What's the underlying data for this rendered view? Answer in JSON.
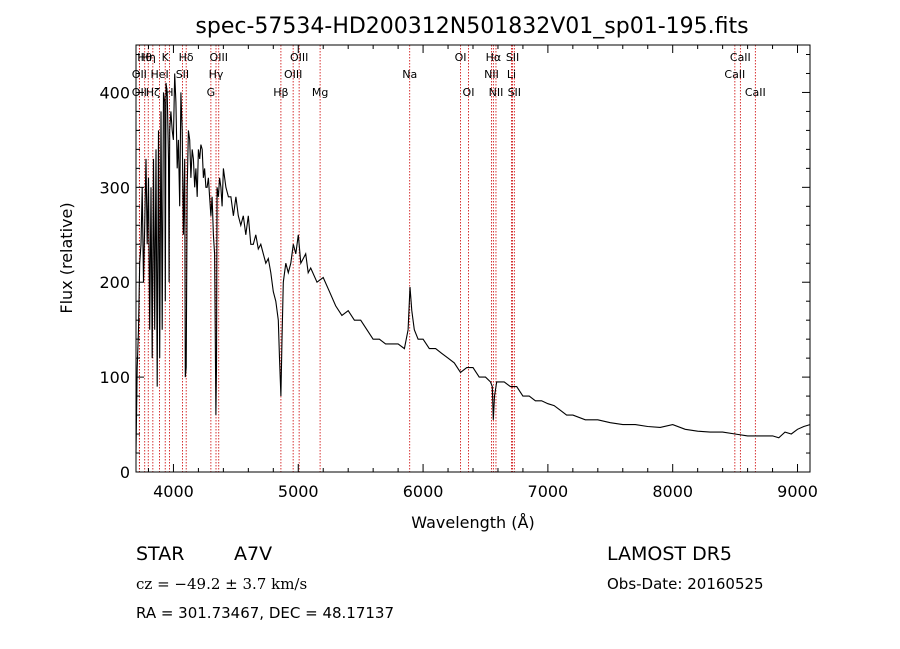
{
  "chart_data": {
    "type": "line",
    "title": "spec-57534-HD200312N501832V01_sp01-195.fits",
    "xlabel": "Wavelength (Å)",
    "ylabel": "Flux (relative)",
    "xlim": [
      3700,
      9100
    ],
    "ylim": [
      0,
      450
    ],
    "x_ticks": [
      4000,
      5000,
      6000,
      7000,
      8000,
      9000
    ],
    "x_tick_labels": [
      "4000",
      "5000",
      "6000",
      "7000",
      "8000",
      "9000"
    ],
    "y_ticks": [
      0,
      100,
      200,
      300,
      400
    ],
    "y_tick_labels": [
      "0",
      "100",
      "200",
      "300",
      "400"
    ],
    "grid": false,
    "series": [
      {
        "color": "#000000",
        "x": [
          3700,
          3710,
          3720,
          3730,
          3740,
          3750,
          3760,
          3770,
          3780,
          3790,
          3800,
          3810,
          3820,
          3830,
          3840,
          3850,
          3860,
          3870,
          3880,
          3890,
          3900,
          3910,
          3920,
          3930,
          3935,
          3940,
          3950,
          3960,
          3965,
          3970,
          3980,
          3990,
          4000,
          4010,
          4020,
          4030,
          4040,
          4050,
          4060,
          4070,
          4080,
          4090,
          4095,
          4102,
          4110,
          4120,
          4130,
          4140,
          4150,
          4160,
          4170,
          4180,
          4190,
          4200,
          4210,
          4220,
          4230,
          4240,
          4250,
          4260,
          4270,
          4280,
          4290,
          4300,
          4310,
          4320,
          4330,
          4340,
          4345,
          4350,
          4360,
          4370,
          4380,
          4390,
          4400,
          4420,
          4440,
          4460,
          4480,
          4500,
          4520,
          4540,
          4560,
          4580,
          4600,
          4620,
          4640,
          4660,
          4680,
          4700,
          4720,
          4740,
          4760,
          4780,
          4800,
          4820,
          4840,
          4850,
          4861,
          4870,
          4880,
          4900,
          4920,
          4940,
          4960,
          4980,
          5000,
          5020,
          5040,
          5060,
          5080,
          5100,
          5150,
          5200,
          5250,
          5300,
          5350,
          5400,
          5450,
          5500,
          5550,
          5600,
          5650,
          5700,
          5750,
          5800,
          5850,
          5880,
          5895,
          5910,
          5930,
          5960,
          6000,
          6050,
          6100,
          6150,
          6200,
          6250,
          6300,
          6350,
          6400,
          6450,
          6500,
          6540,
          6555,
          6563,
          6572,
          6590,
          6620,
          6650,
          6700,
          6750,
          6800,
          6850,
          6900,
          6950,
          7000,
          7050,
          7100,
          7150,
          7200,
          7300,
          7400,
          7500,
          7600,
          7700,
          7800,
          7900,
          8000,
          8100,
          8200,
          8300,
          8400,
          8500,
          8600,
          8700,
          8800,
          8850,
          8900,
          8950,
          9000,
          9050,
          9100
        ],
        "y": [
          20,
          110,
          150,
          220,
          240,
          300,
          200,
          260,
          330,
          240,
          310,
          150,
          300,
          120,
          330,
          150,
          340,
          90,
          360,
          120,
          380,
          150,
          400,
          390,
          180,
          410,
          400,
          330,
          200,
          360,
          380,
          360,
          350,
          420,
          390,
          320,
          350,
          280,
          400,
          360,
          250,
          330,
          100,
          110,
          300,
          360,
          350,
          310,
          340,
          330,
          300,
          320,
          290,
          340,
          330,
          345,
          340,
          310,
          320,
          300,
          300,
          310,
          290,
          270,
          290,
          250,
          230,
          60,
          110,
          300,
          290,
          310,
          300,
          280,
          320,
          300,
          290,
          290,
          270,
          290,
          270,
          260,
          270,
          250,
          270,
          240,
          240,
          250,
          235,
          240,
          230,
          220,
          225,
          210,
          190,
          180,
          160,
          120,
          80,
          140,
          200,
          220,
          210,
          220,
          240,
          230,
          250,
          220,
          225,
          230,
          210,
          215,
          200,
          205,
          190,
          175,
          165,
          170,
          160,
          160,
          150,
          140,
          140,
          135,
          135,
          135,
          130,
          150,
          195,
          170,
          150,
          140,
          140,
          130,
          130,
          125,
          120,
          115,
          105,
          110,
          110,
          100,
          100,
          95,
          90,
          55,
          80,
          95,
          95,
          95,
          90,
          90,
          80,
          80,
          75,
          75,
          72,
          70,
          65,
          60,
          60,
          55,
          55,
          52,
          50,
          50,
          48,
          47,
          50,
          45,
          43,
          42,
          42,
          40,
          38,
          38,
          38,
          36,
          42,
          40,
          45,
          48,
          50
        ]
      }
    ],
    "spectral_lines": [
      {
        "x": 3770,
        "label": "Hθ",
        "row": 0
      },
      {
        "x": 3798,
        "label": "Hη",
        "row": 0
      },
      {
        "x": 3727,
        "label": "OII",
        "row": 1
      },
      {
        "x": 3727,
        "label": "OII",
        "row": 2
      },
      {
        "x": 3835,
        "label": "Hζ",
        "row": 2
      },
      {
        "x": 3889,
        "label": "HeI",
        "row": 1
      },
      {
        "x": 3934,
        "label": "K",
        "row": 0
      },
      {
        "x": 3968,
        "label": "H",
        "row": 2
      },
      {
        "x": 4072,
        "label": "SII",
        "row": 1
      },
      {
        "x": 4102,
        "label": "Hδ",
        "row": 0
      },
      {
        "x": 4300,
        "label": "G",
        "row": 2
      },
      {
        "x": 4341,
        "label": "Hγ",
        "row": 1
      },
      {
        "x": 4363,
        "label": "OIII",
        "row": 0
      },
      {
        "x": 4861,
        "label": "Hβ",
        "row": 2
      },
      {
        "x": 4959,
        "label": "OIII",
        "row": 1
      },
      {
        "x": 5007,
        "label": "OIII",
        "row": 0
      },
      {
        "x": 5175,
        "label": "Mg",
        "row": 2
      },
      {
        "x": 5893,
        "label": "Na",
        "row": 1
      },
      {
        "x": 6300,
        "label": "OI",
        "row": 0
      },
      {
        "x": 6364,
        "label": "OI",
        "row": 2
      },
      {
        "x": 6548,
        "label": "NII",
        "row": 1
      },
      {
        "x": 6563,
        "label": "Hα",
        "row": 0
      },
      {
        "x": 6584,
        "label": "NII",
        "row": 2
      },
      {
        "x": 6708,
        "label": "Li",
        "row": 1
      },
      {
        "x": 6717,
        "label": "SII",
        "row": 0
      },
      {
        "x": 6731,
        "label": "SII",
        "row": 2
      },
      {
        "x": 8498,
        "label": "CaII",
        "row": 1
      },
      {
        "x": 8542,
        "label": "CaII",
        "row": 0
      },
      {
        "x": 8662,
        "label": "CaII",
        "row": 2
      }
    ]
  },
  "info": {
    "class_label": "STAR",
    "subclass_label": "A7V",
    "survey_label": "LAMOST  DR5",
    "cz_text": "cz = −49.2 ± 3.7 km/s",
    "obs_date_text": "Obs-Date: 20160525",
    "coords_text": "RA = 301.73467, DEC =  48.17137"
  },
  "colors": {
    "line_marker": "#cc0000",
    "spectrum": "#000000",
    "background": "#ffffff"
  }
}
